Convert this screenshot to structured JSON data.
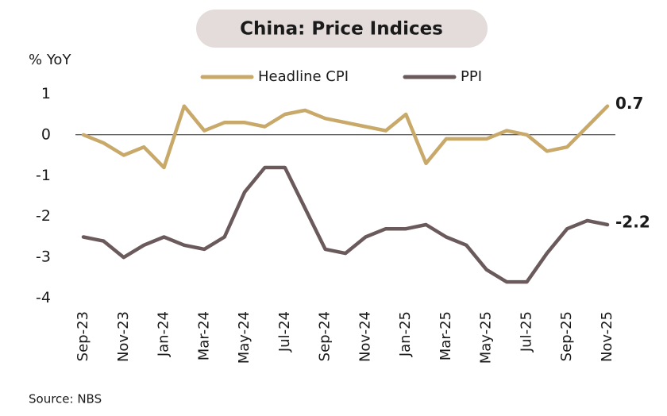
{
  "chart_data": {
    "type": "line",
    "title": "China: Price Indices",
    "y_label": "% YoY",
    "source": "Source: NBS",
    "categories": [
      "Sep-23",
      null,
      "Nov-23",
      null,
      "Jan-24",
      null,
      "Mar-24",
      null,
      "May-24",
      null,
      "Jul-24",
      null,
      "Sep-24",
      null,
      "Nov-24",
      null,
      "Jan-25",
      null,
      "Mar-25",
      null,
      "May-25",
      null,
      "Jul-25",
      null,
      "Sep-25",
      null,
      "Nov-25"
    ],
    "series": [
      {
        "name": "Headline CPI",
        "color": "#c9a96a",
        "label_color": "#b8922c",
        "values": [
          0.0,
          -0.2,
          -0.5,
          -0.3,
          -0.8,
          0.7,
          0.1,
          0.3,
          0.3,
          0.2,
          0.5,
          0.6,
          0.4,
          0.3,
          0.2,
          0.1,
          0.5,
          -0.7,
          -0.1,
          -0.1,
          -0.1,
          0.1,
          0.0,
          -0.4,
          -0.3,
          0.2,
          0.7
        ]
      },
      {
        "name": "PPI",
        "color": "#6b5a5c",
        "label_color": "#6b5a5c",
        "values": [
          -2.5,
          -2.6,
          -3.0,
          -2.7,
          -2.5,
          -2.7,
          -2.8,
          -2.5,
          -1.4,
          -0.8,
          -0.8,
          -1.8,
          -2.8,
          -2.9,
          -2.5,
          -2.3,
          -2.3,
          -2.2,
          -2.5,
          -2.7,
          -3.3,
          -3.6,
          -3.6,
          -2.9,
          -2.3,
          -2.1,
          -2.2
        ]
      }
    ],
    "ylim": [
      -4.2,
      1.2
    ],
    "yticks": [
      -4,
      -3,
      -2,
      -1,
      0,
      1
    ],
    "zero_line": true,
    "grid": false,
    "legend": "top"
  }
}
